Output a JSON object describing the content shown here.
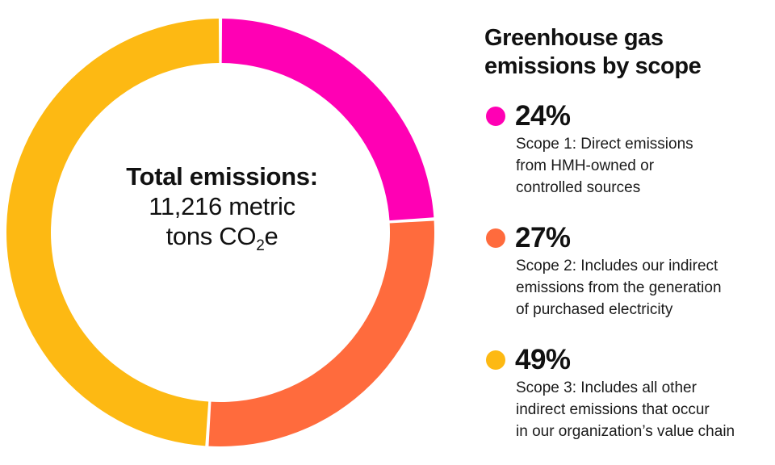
{
  "chart_data": {
    "type": "pie",
    "title": "Greenhouse gas emissions by scope",
    "center": {
      "title": "Total emissions:",
      "value": "11,216 metric",
      "value_line2_prefix": "tons CO",
      "value_line2_sub": "2",
      "value_line2_suffix": "e"
    },
    "slices": [
      {
        "value": 24,
        "label": "24%",
        "description": "Scope 1: Direct emissions\nfrom HMH-owned or\ncontrolled sources",
        "color": "#FF00B4"
      },
      {
        "value": 27,
        "label": "27%",
        "description": "Scope 2: Includes our indirect\nemissions from the generation\nof purchased electricity",
        "color": "#FF6B3D"
      },
      {
        "value": 49,
        "label": "49%",
        "description": "Scope 3: Includes all other\nindirect emissions that occur\nin our organization’s value chain",
        "color": "#FDB913"
      }
    ],
    "legend_position": "right"
  }
}
